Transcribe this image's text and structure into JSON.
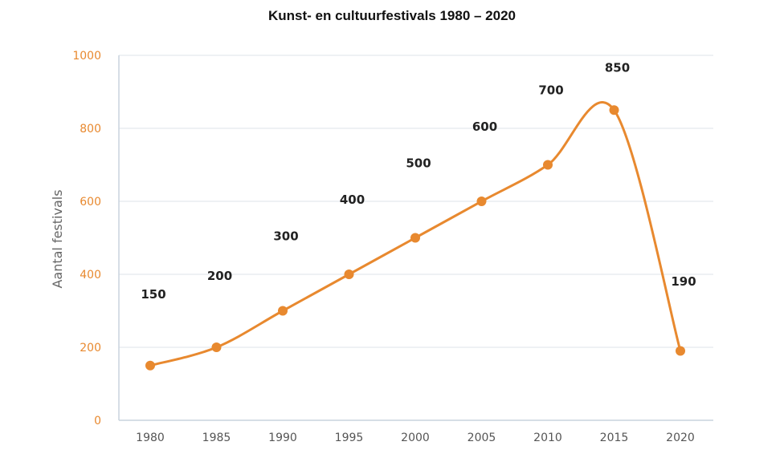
{
  "chart_data": {
    "type": "line",
    "title": "Kunst- en cultuurfestivals 1980 – 2020",
    "ylabel": "Aantal festivals",
    "xlabel": "",
    "x": [
      "1980",
      "1985",
      "1990",
      "1995",
      "2000",
      "2005",
      "2010",
      "2015",
      "2020"
    ],
    "series": [
      {
        "values": [
          150,
          200,
          300,
          400,
          500,
          600,
          700,
          850,
          190
        ]
      }
    ],
    "data_labels": [
      "150",
      "200",
      "300",
      "400",
      "500",
      "600",
      "700",
      "850",
      "190"
    ],
    "ylim": [
      0,
      1000
    ],
    "yticks": [
      "0",
      "200",
      "400",
      "600",
      "800",
      "1000"
    ],
    "grid": true,
    "legend": "none",
    "line_color": "#e8892f",
    "tick_color": "#e8892f"
  }
}
